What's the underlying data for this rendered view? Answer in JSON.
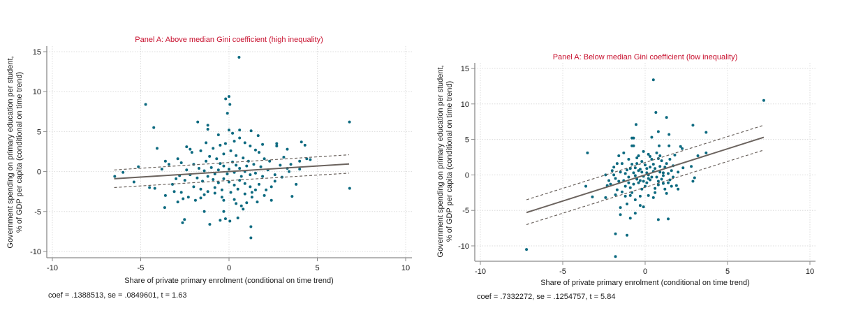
{
  "chart_data": [
    {
      "type": "scatter",
      "title": "Panel A: Above median Gini coefficient (high inequality)",
      "xlabel": "Share of private primary enrolment (conditional on time trend)",
      "ylabel_lines": [
        "Government spending on primary education per student,",
        "% of GDP per capita (conditional on time trend)"
      ],
      "xlim": [
        -10,
        10
      ],
      "ylim": [
        -10,
        15
      ],
      "xticks": [
        -10,
        -5,
        0,
        5,
        10
      ],
      "yticks": [
        -10,
        -5,
        0,
        5,
        10,
        15
      ],
      "grid": true,
      "note": "coef =  .1388513, se =  .0849601, t =  1.63",
      "fit": {
        "x": [
          -6.5,
          6.8
        ],
        "y": [
          -0.9,
          0.95
        ]
      },
      "ci_upper": {
        "x": [
          -6.5,
          6.8
        ],
        "y": [
          0.2,
          2.1
        ]
      },
      "ci_lower": {
        "x": [
          -6.5,
          6.8
        ],
        "y": [
          -2.0,
          -0.2
        ]
      },
      "colors": {
        "points": "#0d6a80",
        "fit": "#6b635e",
        "title": "#c8102e"
      },
      "points": [
        [
          0.57,
          14.3
        ],
        [
          6.82,
          6.2
        ],
        [
          6.83,
          -2.1
        ],
        [
          -4.72,
          8.4
        ],
        [
          -4.26,
          5.5
        ],
        [
          -4.07,
          2.9
        ],
        [
          -6.47,
          -0.6
        ],
        [
          -6.0,
          -0.1
        ],
        [
          -5.13,
          0.6
        ],
        [
          -5.38,
          -1.3
        ],
        [
          -0.19,
          9.1
        ],
        [
          0.0,
          9.4
        ],
        [
          0.05,
          8.4
        ],
        [
          -0.09,
          7.3
        ],
        [
          1.24,
          -6.9
        ],
        [
          1.24,
          -8.3
        ],
        [
          -3.64,
          -4.5
        ],
        [
          -2.63,
          -6.4
        ],
        [
          -2.52,
          -6.0
        ],
        [
          -1.09,
          -6.6
        ],
        [
          3.57,
          -3.1
        ],
        [
          -1.77,
          6.2
        ],
        [
          -1.2,
          5.8
        ],
        [
          -1.2,
          5.3
        ],
        [
          0.0,
          5.2
        ],
        [
          0.6,
          5.2
        ],
        [
          1.25,
          5.1
        ],
        [
          1.65,
          4.5
        ],
        [
          4.1,
          3.7
        ],
        [
          4.3,
          3.3
        ],
        [
          2.7,
          3.5
        ],
        [
          2.7,
          3.2
        ],
        [
          3.3,
          2.8
        ],
        [
          -2.4,
          3.1
        ],
        [
          -2.2,
          2.8
        ],
        [
          -2.1,
          2.4
        ],
        [
          -2.9,
          1.6
        ],
        [
          -2.7,
          1.1
        ],
        [
          -3.6,
          1.3
        ],
        [
          -3.8,
          0.3
        ],
        [
          -4.5,
          -2.0
        ],
        [
          -4.2,
          -2.1
        ],
        [
          -3.6,
          -3.0
        ],
        [
          -3.1,
          -2.5
        ],
        [
          -2.9,
          -3.8
        ],
        [
          -2.6,
          -3.4
        ],
        [
          -2.3,
          -3.2
        ],
        [
          -1.9,
          -3.6
        ],
        [
          -1.6,
          -3.3
        ],
        [
          -1.4,
          -2.9
        ],
        [
          -0.8,
          -2.7
        ],
        [
          -0.4,
          -3.2
        ],
        [
          -0.3,
          -3.6
        ],
        [
          0.3,
          -3.5
        ],
        [
          0.4,
          -4.0
        ],
        [
          0.7,
          -4.3
        ],
        [
          0.8,
          -4.7
        ],
        [
          1.0,
          -3.9
        ],
        [
          1.3,
          -3.2
        ],
        [
          1.6,
          -3.8
        ],
        [
          -0.3,
          -5.0
        ],
        [
          0.05,
          -6.2
        ],
        [
          -1.4,
          -5.0
        ],
        [
          -0.5,
          -6.1
        ],
        [
          -0.2,
          -5.9
        ],
        [
          0.5,
          -5.8
        ],
        [
          1.7,
          -1.6
        ],
        [
          2.1,
          -2.3
        ],
        [
          2.4,
          -1.9
        ],
        [
          2.6,
          -1.2
        ],
        [
          3.0,
          -0.7
        ],
        [
          3.4,
          0.0
        ],
        [
          3.3,
          0.4
        ],
        [
          3.5,
          0.9
        ],
        [
          4.0,
          1.3
        ],
        [
          4.4,
          1.6
        ],
        [
          4.6,
          1.5
        ],
        [
          2.3,
          1.3
        ],
        [
          2.0,
          1.6
        ],
        [
          1.7,
          2.4
        ],
        [
          1.5,
          2.7
        ],
        [
          1.2,
          3.2
        ],
        [
          0.9,
          3.6
        ],
        [
          0.6,
          4.2
        ],
        [
          0.3,
          3.8
        ],
        [
          -0.2,
          3.5
        ],
        [
          -0.5,
          3.3
        ],
        [
          -0.9,
          2.9
        ],
        [
          -1.3,
          3.6
        ],
        [
          -1.6,
          2.6
        ],
        [
          -1.1,
          1.9
        ],
        [
          -0.7,
          1.6
        ],
        [
          -0.3,
          2.2
        ],
        [
          0.1,
          2.6
        ],
        [
          0.4,
          2.0
        ],
        [
          0.8,
          1.7
        ],
        [
          1.1,
          1.3
        ],
        [
          1.4,
          0.9
        ],
        [
          1.8,
          0.6
        ],
        [
          2.2,
          0.2
        ],
        [
          -2.0,
          0.9
        ],
        [
          -1.7,
          0.4
        ],
        [
          -1.4,
          0.1
        ],
        [
          -1.0,
          0.5
        ],
        [
          -0.6,
          0.2
        ],
        [
          -0.3,
          0.7
        ],
        [
          0.0,
          0.3
        ],
        [
          0.3,
          -0.1
        ],
        [
          0.6,
          0.4
        ],
        [
          0.9,
          0.0
        ],
        [
          1.2,
          -0.4
        ],
        [
          1.5,
          -0.2
        ],
        [
          1.9,
          -0.6
        ],
        [
          -2.2,
          -0.4
        ],
        [
          -1.8,
          -0.8
        ],
        [
          -1.5,
          -1.2
        ],
        [
          -1.2,
          -0.6
        ],
        [
          -0.9,
          -1.0
        ],
        [
          -0.6,
          -1.4
        ],
        [
          -0.3,
          -0.9
        ],
        [
          0.0,
          -1.3
        ],
        [
          0.3,
          -1.7
        ],
        [
          0.6,
          -1.1
        ],
        [
          0.9,
          -1.5
        ],
        [
          1.2,
          -1.9
        ],
        [
          1.5,
          -2.3
        ],
        [
          -2.5,
          -1.1
        ],
        [
          -2.8,
          -0.5
        ],
        [
          -3.2,
          -1.6
        ],
        [
          -2.0,
          -1.9
        ],
        [
          -1.6,
          -2.2
        ],
        [
          -1.2,
          -2.5
        ],
        [
          -0.8,
          -2.0
        ],
        [
          -0.4,
          -2.3
        ],
        [
          0.1,
          -2.6
        ],
        [
          0.5,
          -2.2
        ],
        [
          0.9,
          -2.8
        ],
        [
          1.3,
          -2.6
        ],
        [
          -0.5,
          1.0
        ],
        [
          0.2,
          1.2
        ],
        [
          -0.1,
          -0.3
        ],
        [
          0.4,
          0.8
        ],
        [
          -0.8,
          -0.3
        ],
        [
          0.7,
          -0.6
        ],
        [
          1.0,
          0.7
        ],
        [
          -1.3,
          1.3
        ],
        [
          -2.4,
          0.2
        ],
        [
          2.6,
          -0.4
        ],
        [
          2.9,
          0.8
        ],
        [
          3.1,
          1.8
        ],
        [
          -3.0,
          -0.9
        ],
        [
          -2.7,
          -2.6
        ],
        [
          2.0,
          -3.0
        ],
        [
          2.4,
          -3.6
        ],
        [
          0.2,
          4.8
        ],
        [
          -0.6,
          4.6
        ],
        [
          1.9,
          3.4
        ],
        [
          -3.4,
          0.9
        ],
        [
          3.8,
          -1.6
        ],
        [
          4.0,
          0.3
        ]
      ]
    },
    {
      "type": "scatter",
      "title": "Panel A: Below median Gini coefficient (low inequality)",
      "xlabel": "Share of private primary enrolment (conditional on time trend)",
      "ylabel_lines": [
        "Government spending on primary education per student,",
        "% of GDP per capita (conditional on time trend)"
      ],
      "xlim": [
        -10,
        10
      ],
      "ylim": [
        -12,
        15
      ],
      "xticks": [
        -10,
        -5,
        0,
        5,
        10
      ],
      "yticks": [
        -10,
        -5,
        0,
        5,
        10,
        15
      ],
      "grid": true,
      "note": "coef =  .7332272, se =  .1254757, t =  5.84",
      "fit": {
        "x": [
          -7.2,
          7.2
        ],
        "y": [
          -5.3,
          5.3
        ]
      },
      "ci_upper": {
        "x": [
          -7.2,
          7.2
        ],
        "y": [
          -3.5,
          7.0
        ]
      },
      "ci_lower": {
        "x": [
          -7.2,
          7.2
        ],
        "y": [
          -7.0,
          3.5
        ]
      },
      "colors": {
        "points": "#0d6a80",
        "fit": "#6b635e",
        "title": "#c8102e"
      },
      "points": [
        [
          0.5,
          13.4
        ],
        [
          7.2,
          10.5
        ],
        [
          0.65,
          8.8
        ],
        [
          1.3,
          8.1
        ],
        [
          -0.55,
          7.1
        ],
        [
          2.9,
          7.0
        ],
        [
          3.7,
          6.0
        ],
        [
          0.8,
          6.1
        ],
        [
          1.45,
          5.7
        ],
        [
          -0.8,
          5.2
        ],
        [
          -0.7,
          5.2
        ],
        [
          0.4,
          5.3
        ],
        [
          -0.8,
          4.1
        ],
        [
          -0.7,
          4.1
        ],
        [
          1.45,
          4.1
        ],
        [
          0.85,
          4.1
        ],
        [
          2.15,
          4.0
        ],
        [
          2.25,
          3.7
        ],
        [
          -3.5,
          3.1
        ],
        [
          3.7,
          3.1
        ],
        [
          3.2,
          2.7
        ],
        [
          -7.2,
          -10.5
        ],
        [
          -1.8,
          -11.5
        ],
        [
          -1.8,
          -8.3
        ],
        [
          -1.1,
          -8.5
        ],
        [
          0.8,
          -6.3
        ],
        [
          1.4,
          -6.2
        ],
        [
          -1.5,
          -5.6
        ],
        [
          -0.9,
          -6.1
        ],
        [
          -1.5,
          -4.6
        ],
        [
          -0.6,
          -5.4
        ],
        [
          -0.3,
          -4.3
        ],
        [
          -0.1,
          -4.5
        ],
        [
          2.9,
          -0.9
        ],
        [
          3.0,
          -0.4
        ],
        [
          2.8,
          1.2
        ],
        [
          2.3,
          1.0
        ],
        [
          2.0,
          -2.0
        ],
        [
          1.9,
          -1.5
        ],
        [
          1.5,
          -0.7
        ],
        [
          -3.6,
          -1.6
        ],
        [
          -3.2,
          -3.1
        ],
        [
          -2.4,
          -3.2
        ],
        [
          -2.4,
          0.0
        ],
        [
          -2.3,
          -1.5
        ],
        [
          -1.9,
          1.1
        ],
        [
          -1.8,
          -2.8
        ],
        [
          -1.7,
          -2.1
        ],
        [
          -1.6,
          2.7
        ],
        [
          -1.3,
          3.1
        ],
        [
          -1.2,
          -3.0
        ],
        [
          -1.1,
          -4.1
        ],
        [
          -1.0,
          2.2
        ],
        [
          -0.8,
          1.5
        ],
        [
          -0.7,
          -1.3
        ],
        [
          -0.6,
          -3.5
        ],
        [
          -0.5,
          2.4
        ],
        [
          -0.4,
          0.6
        ],
        [
          -0.3,
          -0.8
        ],
        [
          -0.2,
          1.9
        ],
        [
          -0.1,
          3.3
        ],
        [
          0.0,
          -1.6
        ],
        [
          0.1,
          0.9
        ],
        [
          0.2,
          -2.9
        ],
        [
          0.3,
          2.6
        ],
        [
          0.4,
          -0.3
        ],
        [
          0.5,
          1.5
        ],
        [
          0.6,
          -1.9
        ],
        [
          0.7,
          3.1
        ],
        [
          0.8,
          -0.9
        ],
        [
          0.9,
          0.4
        ],
        [
          1.0,
          2.0
        ],
        [
          1.1,
          -1.2
        ],
        [
          1.2,
          1.1
        ],
        [
          1.3,
          -2.6
        ],
        [
          1.4,
          0.2
        ],
        [
          1.5,
          2.2
        ],
        [
          1.6,
          -1.6
        ],
        [
          1.7,
          1.3
        ],
        [
          1.8,
          2.8
        ],
        [
          -1.5,
          0.4
        ],
        [
          -1.3,
          -0.8
        ],
        [
          -1.1,
          0.7
        ],
        [
          -0.9,
          -1.8
        ],
        [
          -0.7,
          0.3
        ],
        [
          -0.5,
          -0.6
        ],
        [
          -0.3,
          0.8
        ],
        [
          -0.1,
          -0.2
        ],
        [
          0.1,
          0.3
        ],
        [
          0.3,
          -0.7
        ],
        [
          0.5,
          0.5
        ],
        [
          0.7,
          -0.3
        ],
        [
          0.9,
          1.2
        ],
        [
          1.1,
          0.3
        ],
        [
          -2.0,
          0.6
        ],
        [
          -1.8,
          -0.5
        ],
        [
          -1.4,
          1.6
        ],
        [
          -1.2,
          -1.6
        ],
        [
          -1.0,
          -0.3
        ],
        [
          -0.8,
          -2.5
        ],
        [
          -0.6,
          1.0
        ],
        [
          -0.4,
          -1.1
        ],
        [
          -0.2,
          -2.0
        ],
        [
          0.0,
          1.4
        ],
        [
          0.2,
          -0.5
        ],
        [
          0.4,
          2.2
        ],
        [
          0.6,
          0.9
        ],
        [
          0.8,
          -1.4
        ],
        [
          1.0,
          -0.6
        ],
        [
          1.2,
          -2.0
        ],
        [
          -2.2,
          -0.8
        ],
        [
          -1.9,
          0.0
        ],
        [
          -1.6,
          -0.9
        ],
        [
          -1.4,
          -2.4
        ],
        [
          -1.2,
          0.2
        ],
        [
          -0.9,
          0.9
        ],
        [
          -0.5,
          1.6
        ],
        [
          -0.2,
          0.4
        ],
        [
          0.1,
          -1.1
        ],
        [
          0.3,
          1.1
        ],
        [
          0.6,
          -2.5
        ],
        [
          0.8,
          2.3
        ],
        [
          1.1,
          -0.1
        ],
        [
          1.4,
          -1.1
        ],
        [
          1.7,
          -0.3
        ],
        [
          2.0,
          0.4
        ],
        [
          -0.3,
          -3.0
        ],
        [
          0.5,
          -3.2
        ],
        [
          -0.9,
          -2.9
        ],
        [
          1.3,
          1.6
        ],
        [
          -1.7,
          1.6
        ],
        [
          -2.1,
          -1.3
        ],
        [
          0.2,
          2.9
        ],
        [
          -0.4,
          2.7
        ],
        [
          0.9,
          2.7
        ],
        [
          -1.0,
          -1.1
        ],
        [
          1.6,
          0.6
        ],
        [
          -0.1,
          -0.9
        ],
        [
          0.2,
          0.0
        ],
        [
          -0.6,
          -0.1
        ]
      ]
    }
  ]
}
